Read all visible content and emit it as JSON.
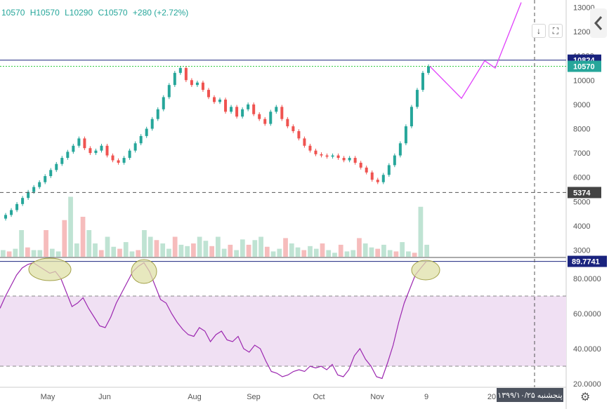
{
  "header": {
    "ohlc": [
      "10570",
      "H10570",
      "L10290",
      "C10570",
      "+280 (+2.72%)"
    ]
  },
  "colors": {
    "up": "#26a69a",
    "down": "#ef5350",
    "projection": "#e040fb",
    "rsi": "#9c27b0",
    "level": "#1a237e",
    "band": "#f0e0f3",
    "ellipse": "#dfe0a8",
    "ellipseStroke": "#a3a14a"
  },
  "chart_data": [
    {
      "type": "candlestick",
      "panel": "price",
      "y_axis_ticks": [
        "13000",
        "12000",
        "11000",
        "10000",
        "9000",
        "8000",
        "7000",
        "6000",
        "5000",
        "4000",
        "3000"
      ],
      "yrange": [
        2700,
        13300
      ],
      "x_axis_ticks": [
        "May",
        "Jun",
        "Aug",
        "Sep",
        "Oct",
        "Nov",
        "9",
        "20"
      ],
      "price_labels": [
        {
          "value": 10824,
          "text": "10824"
        },
        {
          "value": 10570,
          "text": "10570"
        },
        {
          "value": 5374,
          "text": "5374"
        }
      ],
      "projection_path": [
        [
          10570,
          0
        ],
        [
          9250,
          1
        ],
        [
          10800,
          2
        ],
        [
          10500,
          3
        ],
        [
          13200,
          4
        ]
      ],
      "volume_bars": [
        0.1,
        0.08,
        0.12,
        0.4,
        0.14,
        0.1,
        0.1,
        0.4,
        0.12,
        0.08,
        0.55,
        0.9,
        0.2,
        0.6,
        0.4,
        0.2,
        0.1,
        0.3,
        0.15,
        0.12,
        0.22,
        0.08,
        0.1,
        0.4,
        0.3,
        0.25,
        0.2,
        0.12,
        0.3,
        0.18,
        0.16,
        0.2,
        0.3,
        0.24,
        0.16,
        0.3,
        0.12,
        0.18,
        0.1,
        0.26,
        0.18,
        0.25,
        0.3,
        0.15,
        0.08,
        0.12,
        0.28,
        0.2,
        0.14,
        0.1,
        0.16,
        0.12,
        0.2,
        0.1,
        0.06,
        0.18,
        0.08,
        0.1,
        0.28,
        0.2,
        0.14,
        0.12,
        0.18,
        0.1,
        0.08,
        0.22,
        0.08,
        0.06,
        0.75,
        0.18
      ]
    },
    {
      "type": "line",
      "panel": "rsi",
      "y_axis_ticks": [
        "80.0000",
        "60.0000",
        "40.0000",
        "20.0000"
      ],
      "yrange": [
        18,
        92
      ],
      "current_label": "89.7741",
      "current_value": 89.7741,
      "upper_band": 70,
      "lower_band": 30
    }
  ],
  "footer": {
    "date_tooltip": "پنجشنبه ۱۳۹۹/۱۰/۲۵"
  }
}
